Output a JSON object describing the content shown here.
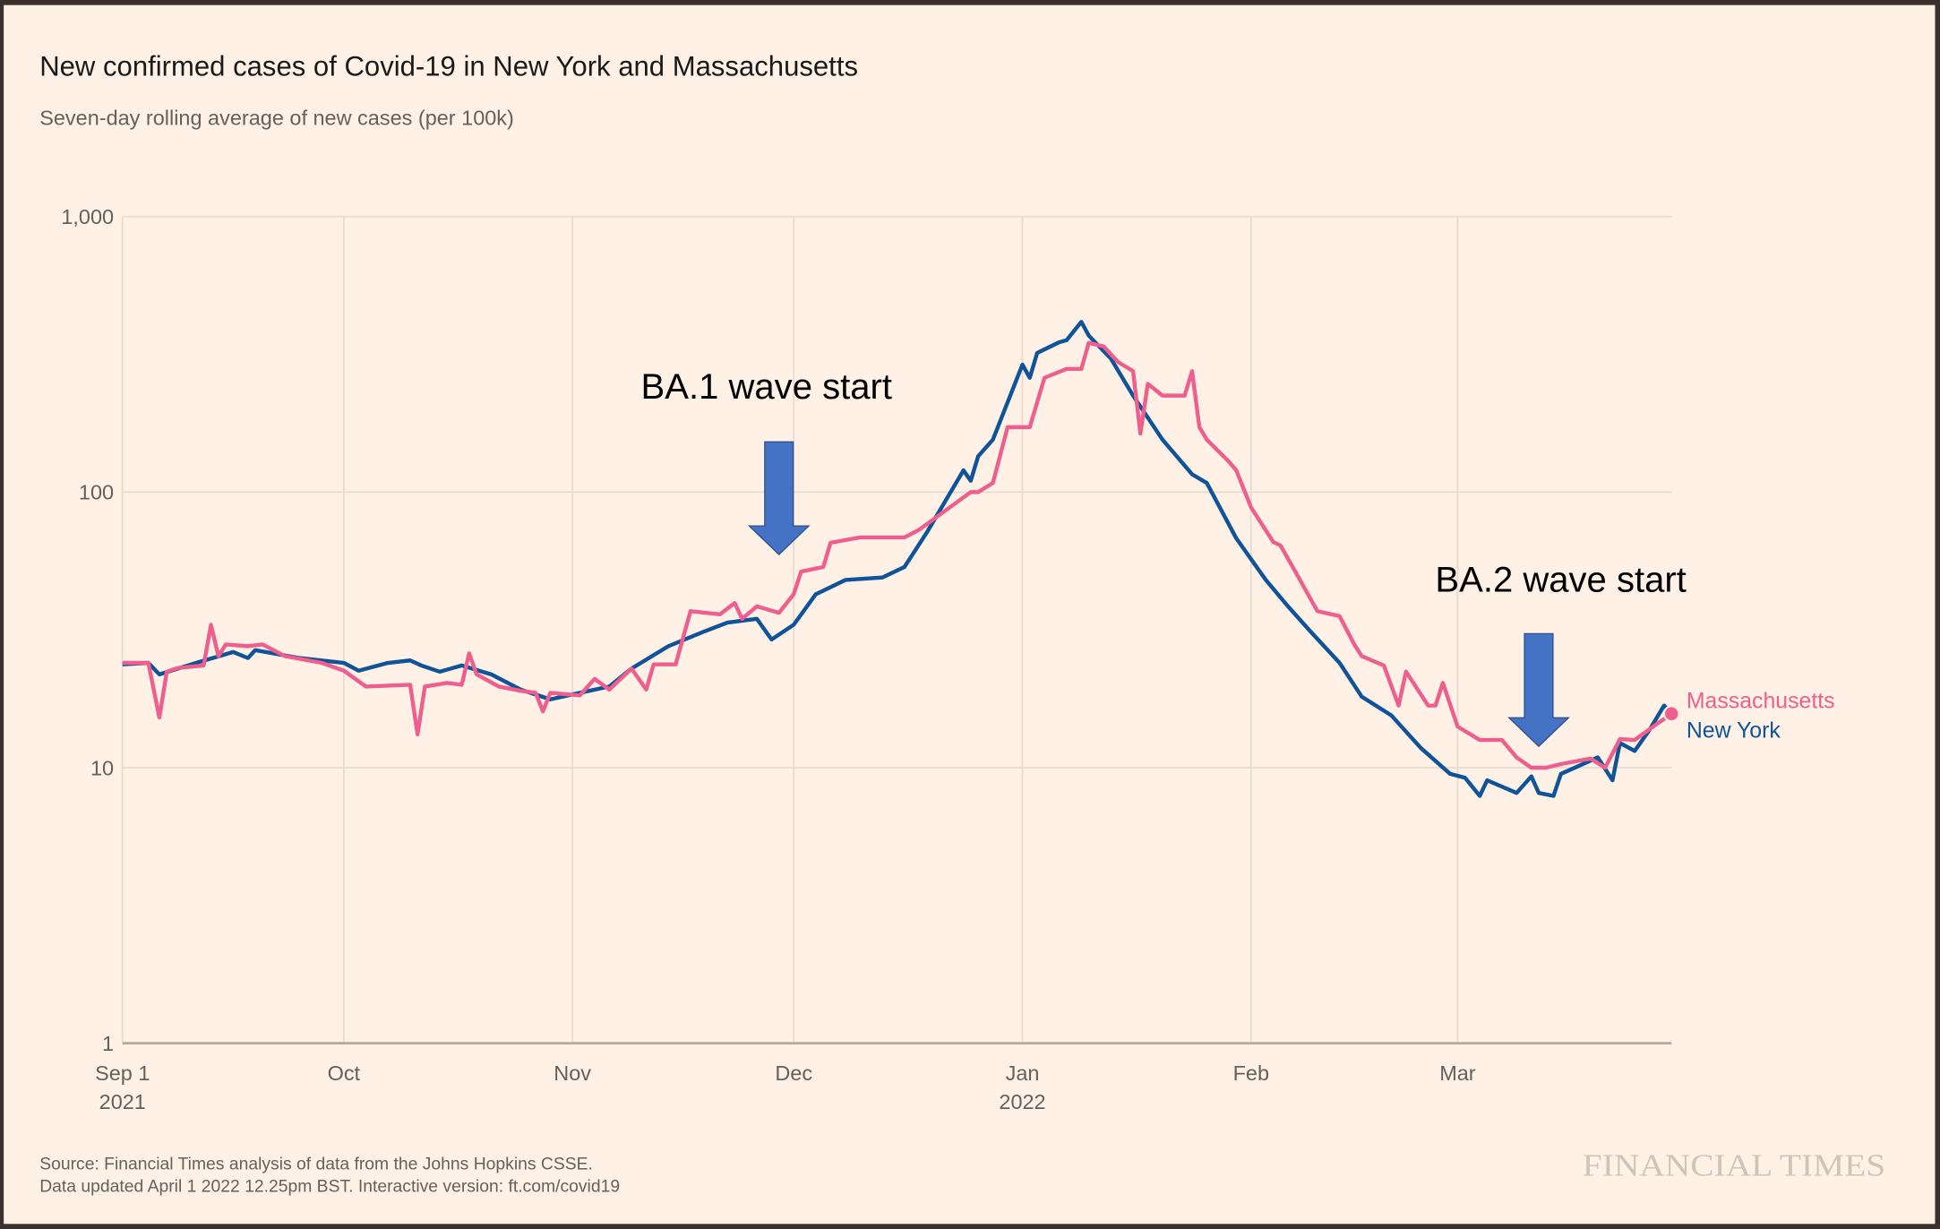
{
  "chart_data": {
    "type": "line",
    "title": "New confirmed cases of Covid-19 in New York and Massachusetts",
    "subtitle": "Seven-day rolling average of new cases (per 100k)",
    "x_unit": "days since Sep 1 2021",
    "xlim": [
      0,
      210
    ],
    "yscale": "log",
    "ylim": [
      1,
      1000
    ],
    "grid": true,
    "y_ticks": [
      {
        "value": 1000,
        "label": "1,000"
      },
      {
        "value": 100,
        "label": "100"
      },
      {
        "value": 10,
        "label": "10"
      },
      {
        "value": 1,
        "label": "1"
      }
    ],
    "x_ticks": [
      {
        "day": 0,
        "label": "Sep 1",
        "sublabel": "2021"
      },
      {
        "day": 30,
        "label": "Oct",
        "sublabel": ""
      },
      {
        "day": 61,
        "label": "Nov",
        "sublabel": ""
      },
      {
        "day": 91,
        "label": "Dec",
        "sublabel": ""
      },
      {
        "day": 122,
        "label": "Jan",
        "sublabel": "2022"
      },
      {
        "day": 153,
        "label": "Feb",
        "sublabel": ""
      },
      {
        "day": 181,
        "label": "Mar",
        "sublabel": ""
      }
    ],
    "legend_placement": "line-end labels (right)",
    "series": [
      {
        "name": "Massachusetts",
        "color": "#ee5f8e",
        "points": [
          [
            0,
            24
          ],
          [
            3.5,
            24
          ],
          [
            5,
            15.2
          ],
          [
            6,
            22.3
          ],
          [
            7.5,
            23
          ],
          [
            11,
            23.5
          ],
          [
            12,
            33
          ],
          [
            13,
            25.4
          ],
          [
            14,
            28
          ],
          [
            17,
            27.6
          ],
          [
            19,
            28
          ],
          [
            22,
            25.4
          ],
          [
            27,
            24
          ],
          [
            30,
            22.5
          ],
          [
            33,
            19.7
          ],
          [
            39,
            20
          ],
          [
            40,
            13.2
          ],
          [
            41,
            19.7
          ],
          [
            44,
            20.3
          ],
          [
            46,
            20
          ],
          [
            47,
            26
          ],
          [
            48,
            21.8
          ],
          [
            51,
            19.7
          ],
          [
            54,
            19
          ],
          [
            56,
            18.7
          ],
          [
            57,
            16
          ],
          [
            58,
            18.7
          ],
          [
            62,
            18.3
          ],
          [
            64,
            21
          ],
          [
            66,
            19.2
          ],
          [
            69,
            22.9
          ],
          [
            71,
            19.2
          ],
          [
            72,
            23.7
          ],
          [
            75,
            23.7
          ],
          [
            77,
            37
          ],
          [
            81,
            36
          ],
          [
            83,
            39.6
          ],
          [
            84,
            34.7
          ],
          [
            86,
            38.5
          ],
          [
            89,
            36.5
          ],
          [
            91,
            42.6
          ],
          [
            92,
            51.5
          ],
          [
            95,
            53.5
          ],
          [
            96,
            65.5
          ],
          [
            100,
            68.5
          ],
          [
            106,
            68.5
          ],
          [
            108,
            73
          ],
          [
            115,
            100
          ],
          [
            116,
            100
          ],
          [
            118,
            108
          ],
          [
            120,
            172
          ],
          [
            123,
            172
          ],
          [
            125,
            260
          ],
          [
            128,
            280
          ],
          [
            130,
            280
          ],
          [
            131,
            348
          ],
          [
            133,
            338
          ],
          [
            135,
            296
          ],
          [
            137,
            275
          ],
          [
            138,
            163
          ],
          [
            139,
            247
          ],
          [
            141,
            224
          ],
          [
            144,
            224
          ],
          [
            145,
            275
          ],
          [
            146,
            172
          ],
          [
            147,
            155
          ],
          [
            150,
            129
          ],
          [
            151,
            120
          ],
          [
            153,
            88
          ],
          [
            156,
            66
          ],
          [
            157,
            64
          ],
          [
            159,
            51.5
          ],
          [
            162,
            37
          ],
          [
            165,
            35.5
          ],
          [
            167,
            28
          ],
          [
            168,
            25.4
          ],
          [
            171,
            23.5
          ],
          [
            173,
            16.8
          ],
          [
            174,
            22.3
          ],
          [
            177,
            16.8
          ],
          [
            178,
            16.8
          ],
          [
            179,
            20.3
          ],
          [
            181,
            14.1
          ],
          [
            184,
            12.6
          ],
          [
            187,
            12.6
          ],
          [
            189,
            10.9
          ],
          [
            191,
            10
          ],
          [
            193,
            10
          ],
          [
            195,
            10.3
          ],
          [
            199,
            10.8
          ],
          [
            201,
            10
          ],
          [
            203,
            12.7
          ],
          [
            205,
            12.6
          ],
          [
            208,
            14.4
          ],
          [
            210,
            15.7
          ]
        ]
      },
      {
        "name": "New York",
        "color": "#0f5499",
        "points": [
          [
            0,
            23.7
          ],
          [
            3.5,
            24
          ],
          [
            5,
            21.8
          ],
          [
            10,
            24
          ],
          [
            15,
            26.3
          ],
          [
            17,
            25
          ],
          [
            18,
            26.7
          ],
          [
            24,
            25
          ],
          [
            30,
            24
          ],
          [
            32,
            22.5
          ],
          [
            36,
            24
          ],
          [
            39,
            24.5
          ],
          [
            40.5,
            23.5
          ],
          [
            43,
            22.3
          ],
          [
            46,
            23.5
          ],
          [
            50,
            21.8
          ],
          [
            54,
            19.2
          ],
          [
            58,
            17.7
          ],
          [
            62,
            18.7
          ],
          [
            66,
            19.7
          ],
          [
            69,
            22.9
          ],
          [
            74,
            27.6
          ],
          [
            79,
            31.3
          ],
          [
            82,
            33.6
          ],
          [
            86,
            34.7
          ],
          [
            88,
            29.2
          ],
          [
            91,
            33
          ],
          [
            94,
            42.6
          ],
          [
            98,
            48
          ],
          [
            103,
            49
          ],
          [
            106,
            53.5
          ],
          [
            109,
            71
          ],
          [
            114,
            120
          ],
          [
            115,
            110
          ],
          [
            116,
            135
          ],
          [
            118,
            155
          ],
          [
            122,
            290
          ],
          [
            123,
            260
          ],
          [
            124,
            320
          ],
          [
            127,
            350
          ],
          [
            128,
            356
          ],
          [
            130,
            415
          ],
          [
            131,
            370
          ],
          [
            134,
            305
          ],
          [
            137,
            224
          ],
          [
            141,
            155
          ],
          [
            145,
            116
          ],
          [
            147,
            108
          ],
          [
            151,
            68
          ],
          [
            155,
            48
          ],
          [
            158,
            38.5
          ],
          [
            161,
            31.3
          ],
          [
            165,
            24
          ],
          [
            168,
            18.1
          ],
          [
            172,
            15.5
          ],
          [
            176,
            11.8
          ],
          [
            180,
            9.5
          ],
          [
            182,
            9.2
          ],
          [
            184,
            7.9
          ],
          [
            185,
            9
          ],
          [
            189,
            8.1
          ],
          [
            191,
            9.3
          ],
          [
            192,
            8.1
          ],
          [
            194,
            7.9
          ],
          [
            195,
            9.5
          ],
          [
            199,
            10.6
          ],
          [
            200,
            10.9
          ],
          [
            202,
            9
          ],
          [
            203,
            12.3
          ],
          [
            205,
            11.5
          ],
          [
            207,
            13.7
          ],
          [
            209,
            16.8
          ],
          [
            210,
            15.7
          ]
        ]
      }
    ],
    "annotations": [
      {
        "text": "BA.1 wave start",
        "arrow_day": 89
      },
      {
        "text": "BA.2 wave start",
        "arrow_day": 192
      }
    ],
    "source": "Source: Financial Times analysis of data from the Johns Hopkins CSSE.",
    "updated": "Data updated April 1 2022 12.25pm BST. Interactive version: ft.com/covid19",
    "logo": "FINANCIAL TIMES"
  },
  "colors": {
    "background": "#fff1e5",
    "grid": "#e9dccf",
    "axis": "#b3a9a0",
    "text_muted": "#66605c",
    "arrow": "#4472c4"
  }
}
